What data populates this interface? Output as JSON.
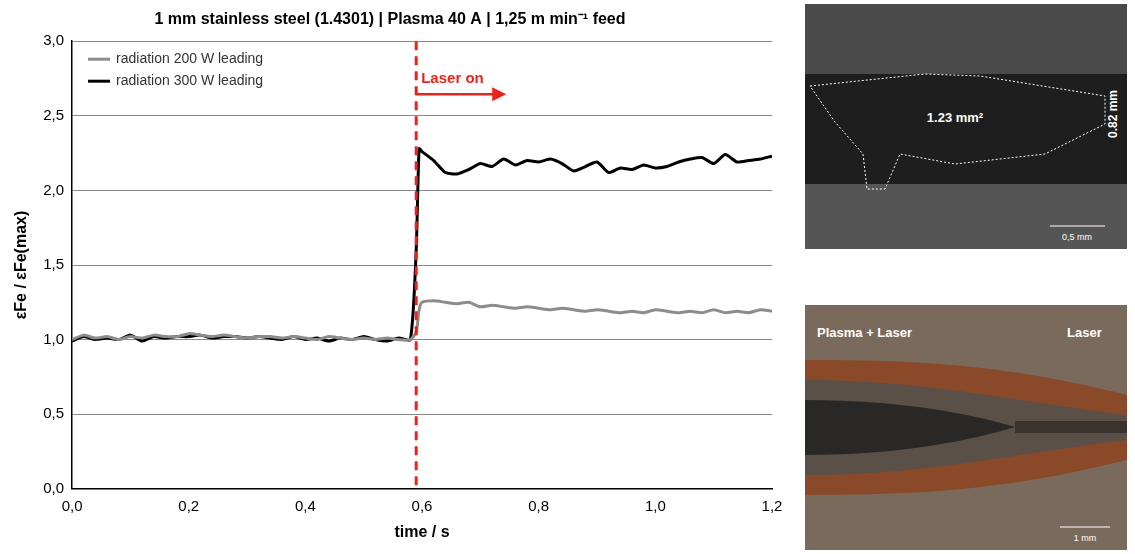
{
  "chart_data": {
    "type": "line",
    "title": "1 mm stainless steel (1.4301) | Plasma 40 A | 1,25 m min⁻¹ feed",
    "x_label": "time / s",
    "y_label": "εFe / εFe(max)",
    "x": [
      0.0,
      0.02,
      0.04,
      0.06,
      0.08,
      0.1,
      0.12,
      0.14,
      0.16,
      0.18,
      0.2,
      0.22,
      0.24,
      0.26,
      0.28,
      0.3,
      0.32,
      0.34,
      0.36,
      0.38,
      0.4,
      0.42,
      0.44,
      0.46,
      0.48,
      0.5,
      0.52,
      0.54,
      0.56,
      0.58,
      0.59,
      0.595,
      0.6,
      0.62,
      0.64,
      0.66,
      0.68,
      0.7,
      0.72,
      0.74,
      0.76,
      0.78,
      0.8,
      0.82,
      0.84,
      0.86,
      0.88,
      0.9,
      0.92,
      0.94,
      0.96,
      0.98,
      1.0,
      1.02,
      1.04,
      1.06,
      1.08,
      1.1,
      1.12,
      1.14,
      1.16,
      1.18,
      1.2
    ],
    "series": [
      {
        "name": "radiation 200 W leading",
        "color": "#8c8c8c",
        "values": [
          1.0,
          1.03,
          1.01,
          1.02,
          1.0,
          1.02,
          1.01,
          1.03,
          1.02,
          1.02,
          1.04,
          1.03,
          1.02,
          1.03,
          1.02,
          1.01,
          1.02,
          1.02,
          1.01,
          1.02,
          1.01,
          1.0,
          1.02,
          1.01,
          1.0,
          1.01,
          1.0,
          1.01,
          1.0,
          1.0,
          1.05,
          1.2,
          1.25,
          1.26,
          1.25,
          1.24,
          1.25,
          1.22,
          1.23,
          1.22,
          1.21,
          1.22,
          1.21,
          1.2,
          1.21,
          1.2,
          1.19,
          1.2,
          1.19,
          1.18,
          1.19,
          1.18,
          1.2,
          1.19,
          1.18,
          1.19,
          1.18,
          1.2,
          1.18,
          1.19,
          1.18,
          1.2,
          1.19
        ]
      },
      {
        "name": "radiation 300 W leading",
        "color": "#000000",
        "values": [
          0.99,
          1.02,
          1.0,
          1.01,
          1.0,
          1.03,
          0.99,
          1.02,
          1.01,
          1.02,
          1.02,
          1.03,
          1.01,
          1.02,
          1.02,
          1.01,
          1.02,
          1.01,
          1.0,
          1.02,
          1.0,
          1.01,
          0.99,
          1.01,
          1.0,
          1.02,
          1.0,
          0.99,
          1.01,
          1.0,
          1.6,
          2.28,
          2.26,
          2.2,
          2.12,
          2.11,
          2.14,
          2.18,
          2.16,
          2.21,
          2.17,
          2.2,
          2.19,
          2.21,
          2.18,
          2.13,
          2.16,
          2.19,
          2.12,
          2.15,
          2.14,
          2.17,
          2.15,
          2.16,
          2.19,
          2.21,
          2.22,
          2.18,
          2.24,
          2.19,
          2.2,
          2.21,
          2.23
        ]
      }
    ],
    "xlim": [
      0,
      1.2
    ],
    "xticks": [
      {
        "value": 0,
        "label": "0,0"
      },
      {
        "value": 0.2,
        "label": "0,2"
      },
      {
        "value": 0.4,
        "label": "0,4"
      },
      {
        "value": 0.6,
        "label": "0,6"
      },
      {
        "value": 0.8,
        "label": "0,8"
      },
      {
        "value": 1.0,
        "label": "1,0"
      },
      {
        "value": 1.2,
        "label": "1,2"
      }
    ],
    "ylim": [
      0,
      3
    ],
    "yticks": [
      {
        "value": 0,
        "label": "0,0"
      },
      {
        "value": 0.5,
        "label": "0,5"
      },
      {
        "value": 1.0,
        "label": "1,0"
      },
      {
        "value": 1.5,
        "label": "1,5"
      },
      {
        "value": 2.0,
        "label": "2,0"
      },
      {
        "value": 2.5,
        "label": "2,5"
      },
      {
        "value": 3.0,
        "label": "3,0"
      }
    ],
    "grid": true,
    "legend": "upper left",
    "annotations": [
      {
        "text": "Laser on",
        "x": 0.59,
        "color": "#e8241c"
      }
    ]
  },
  "micrographs": [
    {
      "labels": [
        "1.23 mm²",
        "0.82 mm",
        "0,5 mm"
      ]
    },
    {
      "labels": [
        "Plasma + Laser",
        "Laser",
        "1 mm"
      ]
    }
  ]
}
